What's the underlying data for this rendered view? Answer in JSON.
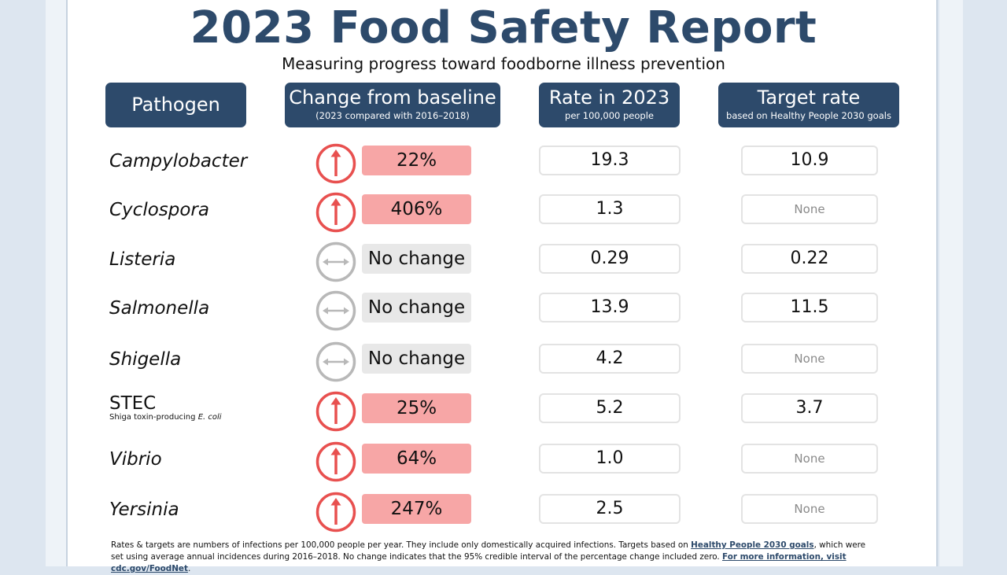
{
  "title": "2023 Food Safety Report",
  "subtitle": "Measuring progress toward foodborne illness prevention",
  "headers": {
    "pathogen": "Pathogen",
    "change": "Change from baseline",
    "change_sub": "(2023  compared with 2016–2018)",
    "rate": "Rate in 2023",
    "rate_sub": "per 100,000  people",
    "target": "Target rate",
    "target_sub": "based on Healthy People 2030 goals"
  },
  "rows": [
    {
      "pathogen": "Campylobacter",
      "trend": "up",
      "change": "22%",
      "rate": "19.3",
      "target": "10.9"
    },
    {
      "pathogen": "Cyclospora",
      "trend": "up",
      "change": "406%",
      "rate": "1.3",
      "target": "None"
    },
    {
      "pathogen": "Listeria",
      "trend": "no-change",
      "change": "No change",
      "rate": "0.29",
      "target": "0.22"
    },
    {
      "pathogen": "Salmonella",
      "trend": "no-change",
      "change": "No change",
      "rate": "13.9",
      "target": "11.5"
    },
    {
      "pathogen": "Shigella",
      "trend": "no-change",
      "change": "No change",
      "rate": "4.2",
      "target": "None"
    },
    {
      "pathogen": "STEC",
      "pathogen_sub": "Shiga toxin-producing ",
      "pathogen_sub_italic": "E. coli",
      "trend": "up",
      "change": "25%",
      "rate": "5.2",
      "target": "3.7"
    },
    {
      "pathogen": "Vibrio",
      "trend": "up",
      "change": "64%",
      "rate": "1.0",
      "target": "None"
    },
    {
      "pathogen": "Yersinia",
      "trend": "up",
      "change": "247%",
      "rate": "2.5",
      "target": "None"
    }
  ],
  "footer": {
    "text1": "Rates & targets are numbers of infections per 100,000 people per year. They include only domestically acquired infections. Targets based on ",
    "link1": "Healthy People 2030 goals",
    "text2": ", which were set using average annual incidences during 2016–2018. No change indicates that the 95% credible interval of the percentage change included zero. ",
    "link2": "For more information,  visit cdc.gov/FoodNet",
    "text3": "."
  },
  "colors": {
    "header_bg": "#2d4a6b",
    "increase_icon": "#e8504f",
    "increase_fill": "#f7a6a6",
    "no_change_icon": "#b8b8b8",
    "no_change_fill": "#e8e8e8"
  },
  "icons": {
    "up": "up-arrow-icon",
    "no-change": "double-arrow-icon"
  }
}
